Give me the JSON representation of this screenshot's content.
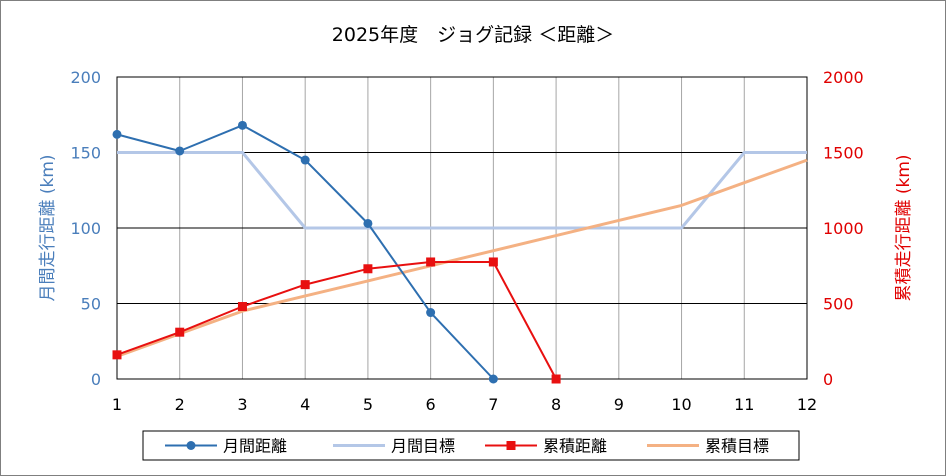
{
  "chart_data": {
    "type": "line",
    "title": "2025年度　ジョグ記録 ＜距離＞",
    "xlabel": "",
    "ylabel_left": "月間走行距離 (km)",
    "ylabel_right": "累積走行距離 (km)",
    "x": [
      1,
      2,
      3,
      4,
      5,
      6,
      7,
      8,
      9,
      10,
      11,
      12
    ],
    "xlim": [
      1,
      12
    ],
    "x_ticks": [
      "1",
      "2",
      "3",
      "4",
      "5",
      "6",
      "7",
      "8",
      "9",
      "10",
      "11",
      "12"
    ],
    "ylim_left": [
      0,
      200
    ],
    "y_ticks_left": [
      "0",
      "50",
      "100",
      "150",
      "200"
    ],
    "ylim_right": [
      0,
      2000
    ],
    "y_ticks_right": [
      "0",
      "500",
      "1000",
      "1500",
      "2000"
    ],
    "grid": true,
    "legend_position": "bottom",
    "colors": {
      "left_axis": "#4a7ebb",
      "right_axis": "#e00000",
      "monthly_distance": "#2e6fb0",
      "monthly_target": "#b4c7e7",
      "cumulative_distance": "#e81010",
      "cumulative_target": "#f4b183"
    },
    "series": [
      {
        "name": "月間距離",
        "axis": "left",
        "marker": "circle",
        "color_key": "monthly_distance",
        "x": [
          1,
          2,
          3,
          4,
          5,
          6,
          7
        ],
        "values": [
          162,
          151,
          168,
          145,
          103,
          44,
          0
        ]
      },
      {
        "name": "月間目標",
        "axis": "left",
        "marker": "none",
        "color_key": "monthly_target",
        "x": [
          1,
          2,
          3,
          4,
          5,
          6,
          7,
          8,
          9,
          10,
          11,
          12
        ],
        "values": [
          150,
          150,
          150,
          100,
          100,
          100,
          100,
          100,
          100,
          100,
          150,
          150
        ]
      },
      {
        "name": "累積距離",
        "axis": "right",
        "marker": "square",
        "color_key": "cumulative_distance",
        "x": [
          1,
          2,
          3,
          4,
          5,
          6,
          7,
          8
        ],
        "values": [
          160,
          310,
          480,
          625,
          730,
          775,
          775,
          0
        ]
      },
      {
        "name": "累積目標",
        "axis": "right",
        "marker": "none",
        "color_key": "cumulative_target",
        "x": [
          1,
          2,
          3,
          4,
          5,
          6,
          7,
          8,
          9,
          10,
          11,
          12
        ],
        "values": [
          150,
          300,
          450,
          550,
          650,
          750,
          850,
          950,
          1050,
          1150,
          1300,
          1450
        ]
      }
    ]
  }
}
